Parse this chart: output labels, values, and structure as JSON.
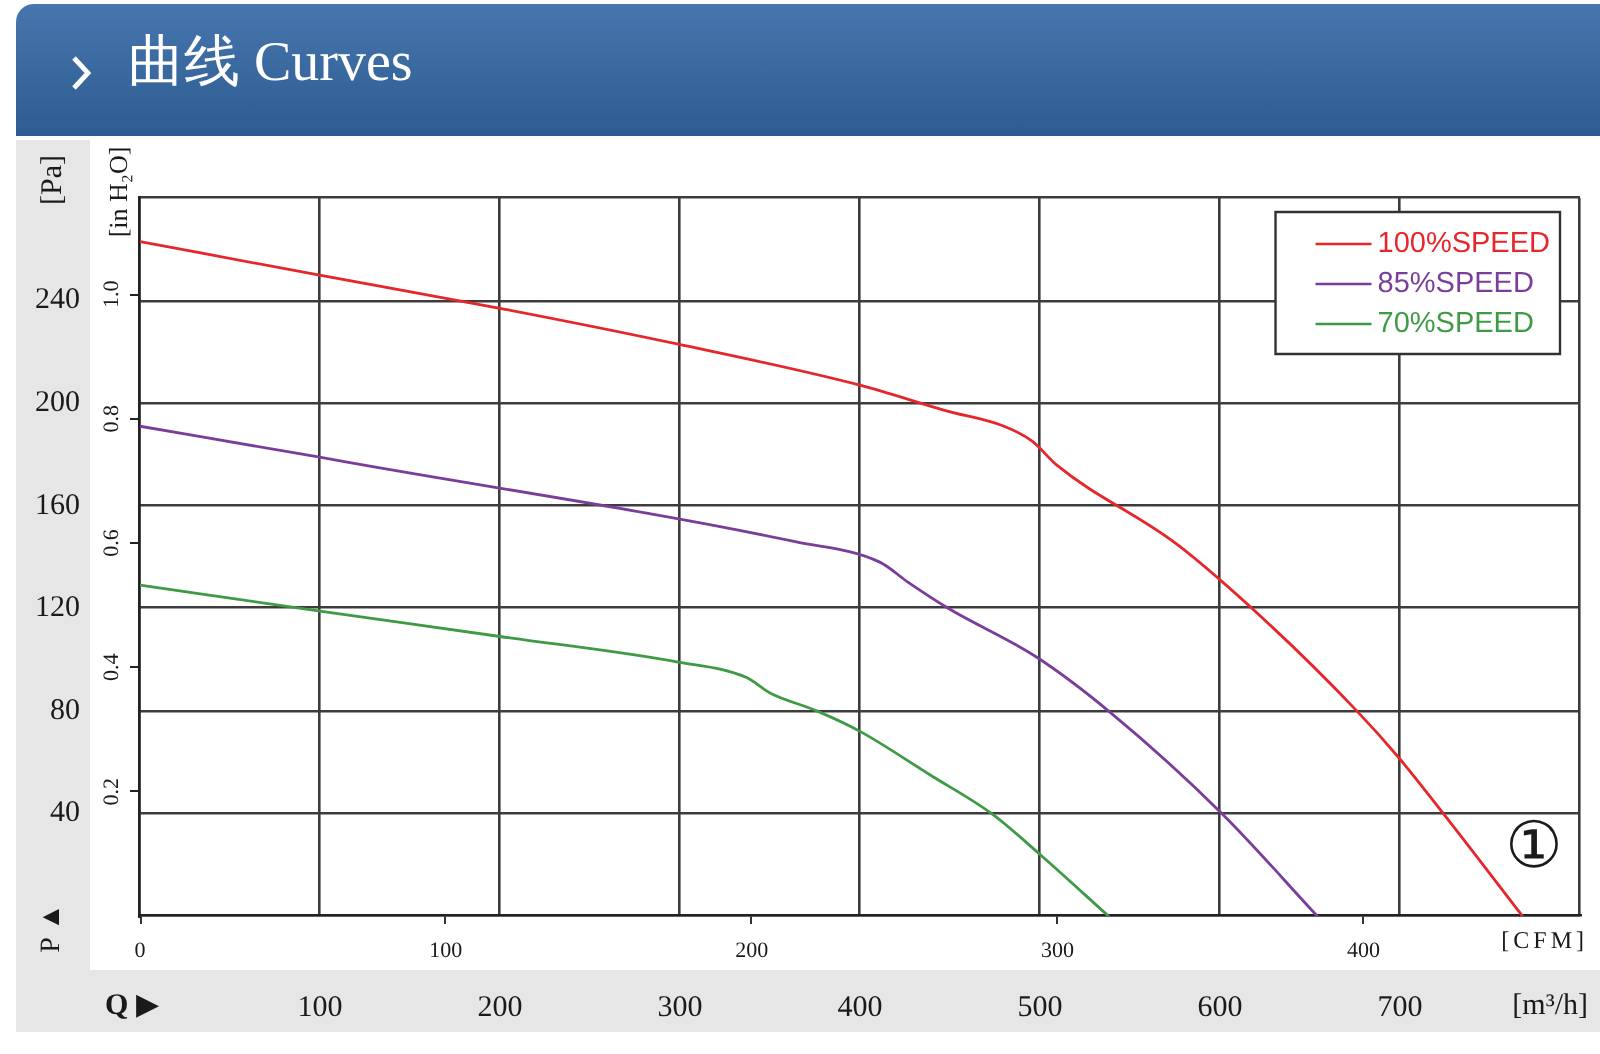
{
  "chart_data": {
    "type": "line",
    "title": "曲线 Curves",
    "xlabel": "[m³/h]",
    "x2label": "[CFM]",
    "ylabel": "[Pa]",
    "y2label": "[in H₂O]",
    "xlim": [
      0,
      800
    ],
    "xticks": [
      {
        "value": 0,
        "label": null
      },
      100,
      200,
      300,
      400,
      500,
      600,
      700,
      {
        "value": 800,
        "label": null
      }
    ],
    "x2lim": [
      0,
      470.8
    ],
    "x2ticks": [
      0,
      100,
      200,
      300,
      400
    ],
    "ylim": [
      0,
      280
    ],
    "yticks": [
      {
        "value": 0,
        "label": null
      },
      40,
      80,
      120,
      160,
      200,
      240,
      {
        "value": 280,
        "label": null
      }
    ],
    "y2lim": [
      0,
      1.155
    ],
    "y2ticks": [
      0.2,
      0.4,
      0.6,
      0.8,
      {
        "value": 1,
        "label": "1.0"
      }
    ],
    "grid": true,
    "legend": "top right",
    "marker": "none",
    "line_style": "solid",
    "annotations": [
      "P ▲",
      "Q ▶",
      "①"
    ],
    "series": [
      {
        "name": "100%SPEED",
        "color": "#e5262b",
        "x": [
          0,
          99,
          200,
          299,
          400,
          448,
          480,
          496,
          509,
          576,
          627,
          676,
          699,
          724,
          768
        ],
        "values": [
          263,
          250,
          237,
          223,
          207,
          197,
          191,
          185,
          176,
          145,
          114,
          80,
          62,
          40,
          0
        ]
      },
      {
        "name": "85%SPEED",
        "color": "#7a3d9a",
        "x": [
          0,
          99,
          115,
          364,
          411,
          427,
          449,
          498,
          538,
          601,
          654
        ],
        "values": [
          191,
          179,
          177,
          146,
          138,
          130,
          120,
          101,
          80,
          40,
          0
        ]
      },
      {
        "name": "70%SPEED",
        "color": "#3f9a46",
        "x": [
          0,
          99,
          200,
          299,
          337,
          350,
          376,
          400,
          439,
          473,
          500,
          538
        ],
        "values": [
          129,
          119,
          109,
          99,
          93,
          87,
          80,
          72,
          55,
          40,
          24,
          0
        ]
      }
    ]
  }
}
